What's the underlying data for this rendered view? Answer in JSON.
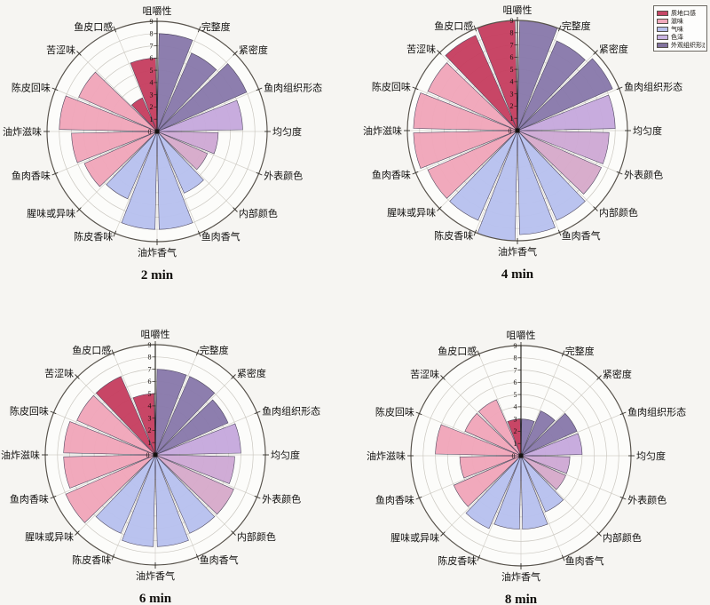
{
  "page": {
    "background": "#f6f5f2"
  },
  "legend": {
    "position": "top-right",
    "items": [
      {
        "label": "质地口感",
        "color": "#c64767"
      },
      {
        "label": "滋味",
        "color": "#f0a9bc"
      },
      {
        "label": "气味",
        "color": "#b7c0ec"
      },
      {
        "label": "色泽",
        "color": "#c8b3e2"
      },
      {
        "label": "外观组织形态",
        "color": "#82739f"
      }
    ]
  },
  "chart_data": {
    "type": "bar",
    "polar": true,
    "layout": {
      "rows": 2,
      "cols": 2,
      "grid": true,
      "r_min": 0,
      "r_max": 9,
      "sector_width_deg": 22.5
    },
    "tick_values": [
      0,
      1,
      2,
      3,
      4,
      5,
      6,
      7,
      8,
      9
    ],
    "categories": [
      "咀嚼性",
      "完整度",
      "紧密度",
      "鱼肉组织形态",
      "均匀度",
      "外表颜色",
      "内部颜色",
      "鱼肉香气",
      "油炸香气",
      "陈皮香味",
      "腥味或异味",
      "鱼肉香味",
      "油炸滋味",
      "陈皮回味",
      "苦涩味",
      "鱼皮口感"
    ],
    "category_groups": [
      0,
      4,
      4,
      4,
      3,
      3,
      3,
      2,
      2,
      2,
      2,
      1,
      1,
      1,
      1,
      0
    ],
    "group_labels": [
      "质地口感",
      "滋味",
      "气味",
      "色泽",
      "外观组织形态"
    ],
    "group_colors": [
      "#c63e60",
      "#f0a6b9",
      "#b7c1ee",
      "#c9abdb",
      "#8879ab"
    ],
    "category_color_overrides": {
      "4": "#c6a9dd",
      "5": "#cea9d4",
      "6": "#d6aaca"
    },
    "series": [
      {
        "name": "2 min",
        "values": [
          6,
          8,
          7,
          8,
          7,
          5,
          4.5,
          5.5,
          8,
          8,
          6,
          6.5,
          7,
          8,
          7,
          3
        ]
      },
      {
        "name": "4 min",
        "values": [
          9,
          9,
          8,
          8.5,
          8,
          7.5,
          7.5,
          8,
          8.5,
          9,
          8,
          8,
          8.5,
          8.5,
          8,
          8.5
        ]
      },
      {
        "name": "6 min",
        "values": [
          5,
          7,
          7,
          6.5,
          7,
          6.5,
          7,
          7,
          7.5,
          7.5,
          7,
          8,
          7.5,
          7.5,
          7,
          7
        ]
      },
      {
        "name": "8 min",
        "values": [
          3,
          3,
          4,
          5,
          5,
          4,
          4,
          5,
          6,
          6,
          6.5,
          6,
          5,
          7,
          5,
          5
        ],
        "color_overrides": {
          "15": "#f0a6b9"
        }
      }
    ]
  }
}
